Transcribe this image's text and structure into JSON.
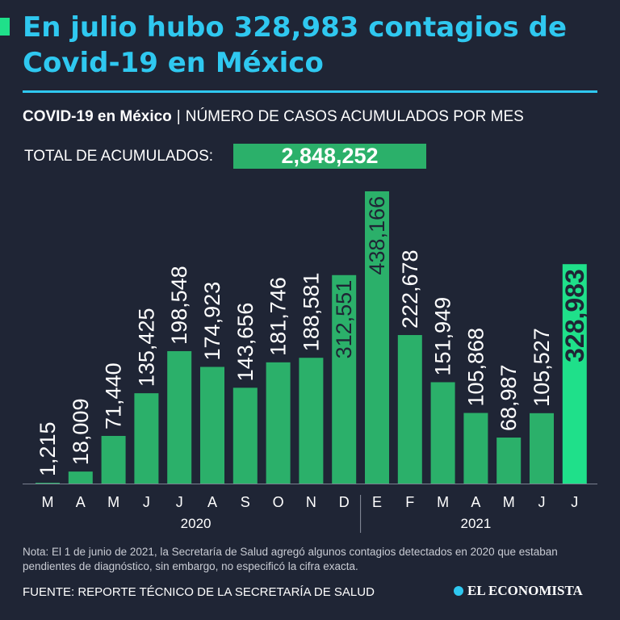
{
  "headline": "En julio hubo 328,983 contagios de Covid-19 en México",
  "subtitle": {
    "bold": "COVID-19 en México",
    "separator": "|",
    "rest": "NÚMERO DE CASOS ACUMULADOS POR MES"
  },
  "total": {
    "label": "TOTAL DE ACUMULADOS:",
    "value": "2,848,252"
  },
  "note": "Nota: El 1 de junio de 2021, la Secretaría de Salud agregó algunos contagios detectados en 2020 que estaban pendientes de diagnóstico, sin embargo, no especificó la cifra exacta.",
  "source": "FUENTE: REPORTE TÉCNICO DE LA SECRETARÍA DE SALUD",
  "logo": "EL ECONOMISTA",
  "colors": {
    "bar": "#2bb06a",
    "bar_highlight": "#1fe08a",
    "headline": "#2fc8f0",
    "background": "#1f2535"
  },
  "chart_data": {
    "type": "bar",
    "title": "Número de casos acumulados por mes",
    "categories": [
      "M",
      "A",
      "M",
      "J",
      "J",
      "A",
      "S",
      "O",
      "N",
      "D",
      "E",
      "F",
      "M",
      "A",
      "M",
      "J",
      "J"
    ],
    "values": [
      1215,
      18009,
      71440,
      135425,
      198548,
      174923,
      143656,
      181746,
      188581,
      312551,
      438166,
      222678,
      151949,
      105868,
      68987,
      105527,
      328983
    ],
    "value_labels": [
      "1,215",
      "18,009",
      "71,440",
      "135,425",
      "198,548",
      "174,923",
      "143,656",
      "181,746",
      "188,581",
      "312,551",
      "438,166",
      "222,678",
      "151,949",
      "105,868",
      "68,987",
      "105,527",
      "328,983"
    ],
    "years": [
      {
        "label": "2020",
        "from": 0,
        "to": 9
      },
      {
        "label": "2021",
        "from": 10,
        "to": 16
      }
    ],
    "highlight_index": 16,
    "ylim": [
      0,
      438166
    ]
  }
}
